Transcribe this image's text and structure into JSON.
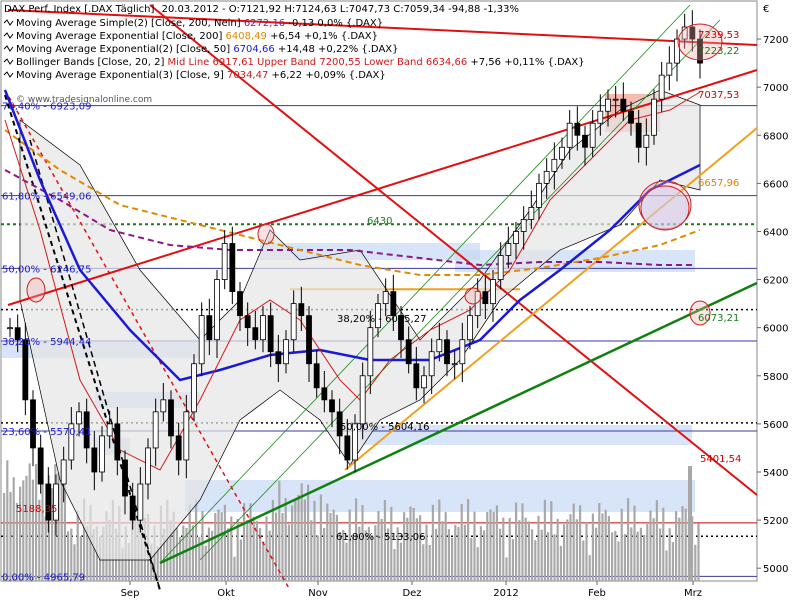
{
  "header": {
    "title": "DAX Perf. Index [.DAX  Täglich]",
    "quote": "20.03.2012 - O:7121,92 H:7124,63 L:7047,73 C:7059,34 -94,88 -1,33%"
  },
  "legend": [
    {
      "text": "Moving Average Simple(2) [Close, 200, Nein]",
      "value": "6272,16",
      "change": "-0,13 0,0%",
      "suffix": "{.DAX}",
      "color": "#7a1f7a"
    },
    {
      "text": "Moving Average Exponential [Close, 200]",
      "value": "6408,49",
      "change": "+6,54 +0,1%",
      "suffix": "{.DAX}",
      "color": "#e08a00"
    },
    {
      "text": "Moving Average Exponential(2) [Close, 50]",
      "value": "6704,66",
      "change": "+14,48 +0,22%",
      "suffix": "{.DAX}",
      "color": "#1a1ad6"
    },
    {
      "text": "Bollinger Bands [Close, 20, 2]",
      "value": "Mid Line 6917,61 Upper Band 7200,55 Lower Band 6634,66",
      "change": "+7,56 +0,11%",
      "suffix": "{.DAX}",
      "color": "#d11a1a"
    },
    {
      "text": "Moving Average Exponential(3) [Close, 9]",
      "value": "7034,47",
      "change": "+6,22 +0,09%",
      "suffix": "{.DAX}",
      "color": "#d11a1a"
    }
  ],
  "watermark": "© www.tradesignalonline.com",
  "currency_symbol": "€",
  "chart_data": {
    "type": "line",
    "x_tick_labels": [
      "Sep",
      "Okt",
      "Nov",
      "Dez",
      "2012",
      "Feb",
      "Mrz"
    ],
    "y_tick_labels": [
      "5000",
      "5200",
      "5400",
      "5600",
      "5800",
      "6000",
      "6200",
      "6400",
      "6600",
      "6800",
      "7000",
      "7200"
    ],
    "ylim": [
      4950,
      7350
    ],
    "grid": false,
    "fib_levels": [
      {
        "label": "76,40% - 6923,09",
        "value": 6923.09
      },
      {
        "label": "61,80% - 6549,06",
        "value": 6549.06
      },
      {
        "label": "50,00% - 6246,75",
        "value": 6246.75
      },
      {
        "label": "38,20% - 5944,44",
        "value": 5944.44
      },
      {
        "label": "23,60% - 5570,41",
        "value": 5570.41
      },
      {
        "label": "0,00% - 4965,79",
        "value": 4965.79
      }
    ],
    "price_labels": [
      {
        "label": "7239,53",
        "value": 7239.53,
        "color": "#cc0000"
      },
      {
        "label": "7223,22",
        "value": 7223.22,
        "color": "#1a7a1a"
      },
      {
        "label": "7037,53",
        "value": 7037.53,
        "color": "#cc0000"
      },
      {
        "label": "6657,96",
        "value": 6657.96,
        "color": "#d98200"
      },
      {
        "label": "6430",
        "value": 6430,
        "color": "#1a7a1a"
      },
      {
        "label": "6073,21",
        "value": 6073.21,
        "color": "#1a7a1a"
      },
      {
        "label": "5401,54",
        "value": 5401.54,
        "color": "#cc0000"
      },
      {
        "label": "5188,35",
        "value": 5188.35,
        "color": "#cc0000"
      }
    ],
    "retracement_labels": [
      {
        "label": "38,20% - 6075,27",
        "value": 6075.27
      },
      {
        "label": "50,00% - 5604,16",
        "value": 5604.16
      },
      {
        "label": "61,80% - 5133,06",
        "value": 5133.06
      }
    ],
    "close_series": [
      6000,
      5950,
      5700,
      5500,
      5350,
      5200,
      5350,
      5450,
      5600,
      5650,
      5500,
      5400,
      5550,
      5600,
      5450,
      5300,
      5200,
      5350,
      5500,
      5650,
      5700,
      5550,
      5450,
      5650,
      5850,
      6050,
      5950,
      6200,
      6350,
      6150,
      6050,
      6000,
      5950,
      6050,
      5900,
      5850,
      5950,
      6100,
      6050,
      5850,
      5750,
      5700,
      5650,
      5550,
      5450,
      5600,
      5800,
      6000,
      6100,
      6150,
      6050,
      5950,
      5850,
      5750,
      5800,
      5900,
      5950,
      5850,
      5850,
      5950,
      6050,
      6150,
      6100,
      6200,
      6300,
      6350,
      6400,
      6450,
      6500,
      6600,
      6650,
      6700,
      6750,
      6850,
      6800,
      6750,
      6850,
      6900,
      6950,
      6950,
      6900,
      6850,
      6750,
      6800,
      6950,
      7050,
      7100,
      7200,
      7250,
      7200,
      7100
    ]
  }
}
